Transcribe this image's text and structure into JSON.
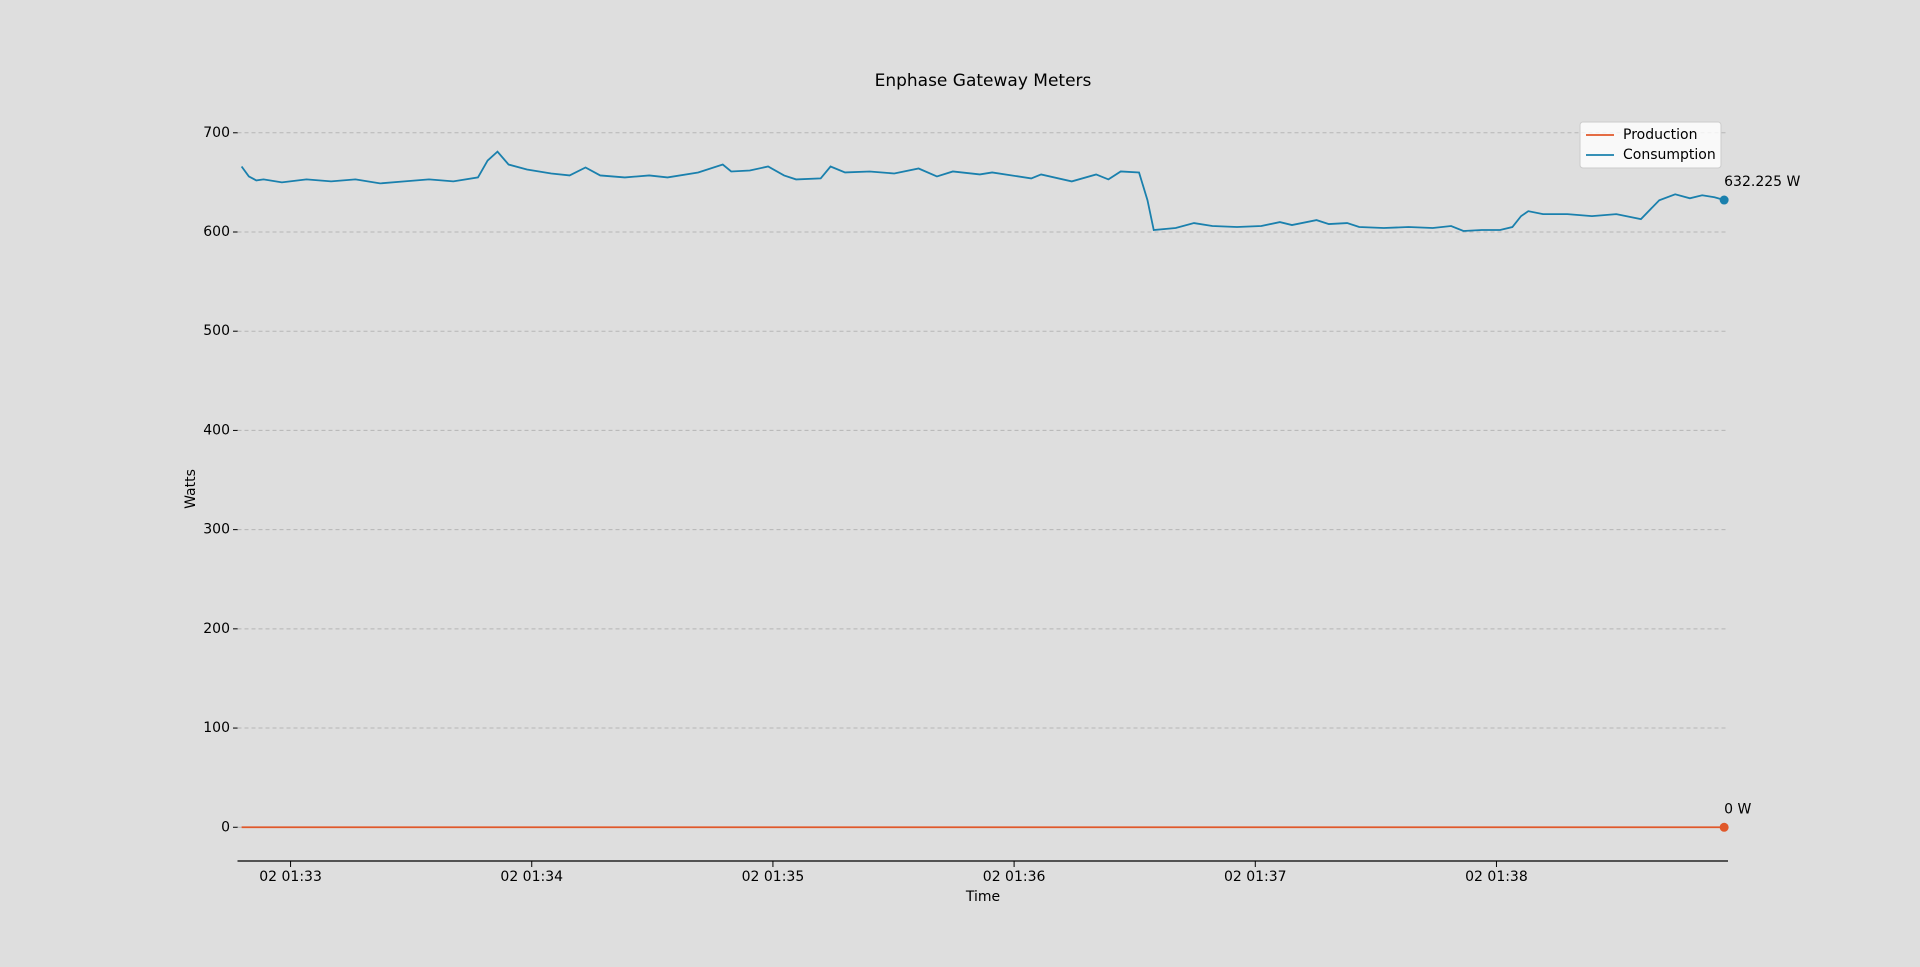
{
  "chart_data": {
    "type": "line",
    "title": "Enphase Gateway Meters",
    "xlabel": "Time",
    "ylabel": "Watts",
    "x": [
      32.797,
      32.827,
      32.858,
      32.888,
      32.964,
      33.066,
      33.168,
      33.269,
      33.371,
      33.472,
      33.574,
      33.675,
      33.777,
      33.817,
      33.858,
      33.904,
      33.98,
      34.081,
      34.157,
      34.223,
      34.284,
      34.386,
      34.487,
      34.563,
      34.69,
      34.792,
      34.827,
      34.904,
      34.98,
      35.046,
      35.096,
      35.198,
      35.239,
      35.299,
      35.401,
      35.503,
      35.604,
      35.68,
      35.746,
      35.858,
      35.909,
      36.071,
      36.112,
      36.239,
      36.34,
      36.391,
      36.442,
      36.518,
      36.553,
      36.579,
      36.67,
      36.746,
      36.822,
      36.924,
      37.025,
      37.102,
      37.152,
      37.254,
      37.305,
      37.381,
      37.431,
      37.533,
      37.635,
      37.736,
      37.812,
      37.863,
      37.939,
      38.015,
      38.066,
      38.102,
      38.132,
      38.193,
      38.294,
      38.396,
      38.497,
      38.599,
      38.675,
      38.741,
      38.802,
      38.853,
      38.904,
      38.944
    ],
    "series": [
      {
        "name": "Production",
        "color": "#e0582a",
        "end_label": "0 W",
        "values": [
          0,
          0,
          0,
          0,
          0,
          0,
          0,
          0,
          0,
          0,
          0,
          0,
          0,
          0,
          0,
          0,
          0,
          0,
          0,
          0,
          0,
          0,
          0,
          0,
          0,
          0,
          0,
          0,
          0,
          0,
          0,
          0,
          0,
          0,
          0,
          0,
          0,
          0,
          0,
          0,
          0,
          0,
          0,
          0,
          0,
          0,
          0,
          0,
          0,
          0,
          0,
          0,
          0,
          0,
          0,
          0,
          0,
          0,
          0,
          0,
          0,
          0,
          0,
          0,
          0,
          0,
          0,
          0,
          0,
          0,
          0,
          0,
          0,
          0,
          0,
          0,
          0,
          0,
          0,
          0,
          0,
          0
        ]
      },
      {
        "name": "Consumption",
        "color": "#1a80ad",
        "end_label": "632.225 W",
        "values": [
          666,
          656,
          652,
          653,
          650,
          653,
          651,
          653,
          649,
          651,
          653,
          651,
          655,
          672,
          681,
          668,
          663,
          659,
          657,
          665,
          657,
          655,
          657,
          655,
          660,
          668,
          661,
          662,
          666,
          657,
          653,
          654,
          666,
          660,
          661,
          659,
          664,
          656,
          661,
          658,
          660,
          654,
          658,
          651,
          658,
          653,
          661,
          660,
          632,
          602,
          604,
          609,
          606,
          605,
          606,
          610,
          607,
          612,
          608,
          609,
          605,
          604,
          605,
          604,
          606,
          601,
          602,
          602,
          605,
          616,
          621,
          618,
          618,
          616,
          618,
          613,
          632,
          638,
          634,
          637,
          635,
          632.225
        ]
      }
    ],
    "xlim": [
      32.78,
      38.96
    ],
    "xticks": [
      {
        "value": 33,
        "label": "02 01:33"
      },
      {
        "value": 34,
        "label": "02 01:34"
      },
      {
        "value": 35,
        "label": "02 01:35"
      },
      {
        "value": 36,
        "label": "02 01:36"
      },
      {
        "value": 37,
        "label": "02 01:37"
      },
      {
        "value": 38,
        "label": "02 01:38"
      }
    ],
    "ylim": [
      -34,
      728
    ],
    "yticks": [
      0,
      100,
      200,
      300,
      400,
      500,
      600,
      700
    ],
    "grid": true,
    "legend": "upper right"
  }
}
